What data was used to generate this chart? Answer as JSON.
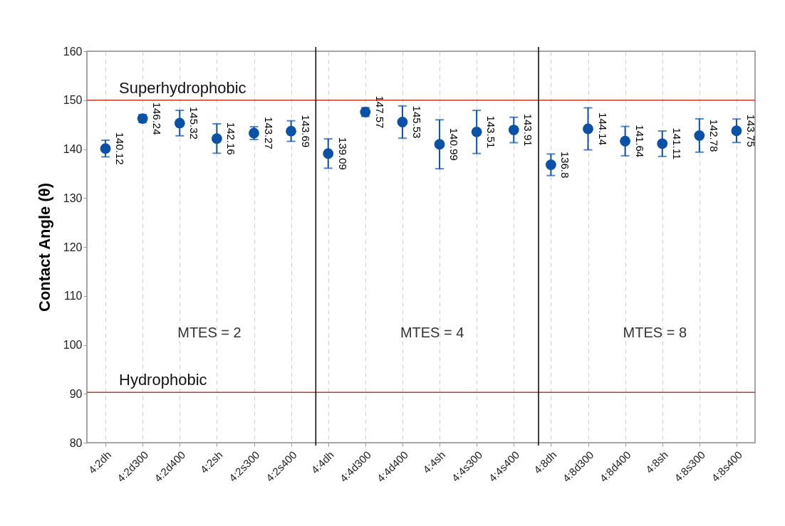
{
  "chart_data": {
    "type": "scatter",
    "ylabel": "Contact Angle (θ)",
    "categories": [
      "4:2dh",
      "4:2d300",
      "4:2d400",
      "4:2sh",
      "4:2s300",
      "4:2s400",
      "4:4dh",
      "4:4d300",
      "4:4d400",
      "4:4sh",
      "4:4s300",
      "4:4s400",
      "4:8dh",
      "4:8d300",
      "4:8d400",
      "4:8sh",
      "4:8s300",
      "4:8s400"
    ],
    "series": [
      {
        "color": "#0b52a6",
        "values": [
          140.12,
          146.24,
          145.32,
          142.16,
          143.27,
          143.69,
          139.09,
          147.57,
          145.53,
          140.99,
          143.51,
          143.91,
          136.8,
          144.14,
          141.64,
          141.11,
          142.78,
          143.75
        ],
        "errors": [
          1.7,
          0.8,
          2.6,
          3.0,
          1.3,
          2.1,
          3.0,
          0.9,
          3.3,
          5.0,
          4.4,
          2.6,
          2.2,
          4.3,
          3.0,
          2.6,
          3.4,
          2.4
        ]
      }
    ],
    "ylim": [
      80,
      160
    ],
    "yticks": [
      80,
      90,
      100,
      110,
      120,
      130,
      140,
      150,
      160
    ],
    "ref_lines": [
      {
        "axis": "y",
        "value": 150,
        "label": "Superhydrophobic",
        "color": "#c0392b"
      },
      {
        "axis": "y",
        "value": 90.3,
        "label": "Hydrophobic",
        "color": "#c0392b"
      },
      {
        "axis": "x",
        "value": "4:4dh",
        "color": "#000000"
      },
      {
        "axis": "x",
        "value": "4:8dh",
        "color": "#000000"
      }
    ],
    "annotations": [
      "MTES =  2",
      "MTES =  4",
      "MTES =  8"
    ],
    "data_labels": true,
    "grid": "x",
    "marker": "circle"
  }
}
